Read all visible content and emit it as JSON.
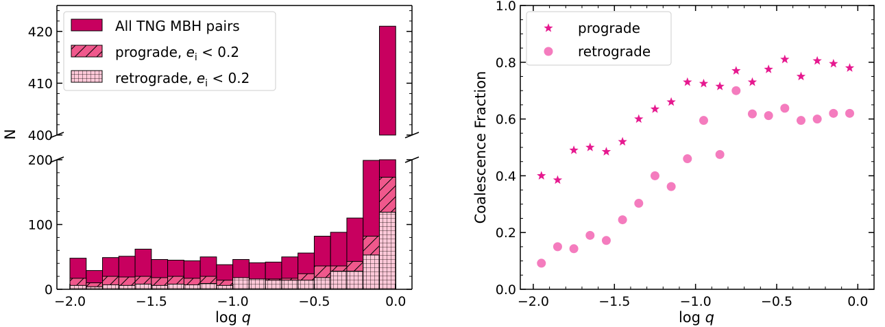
{
  "chart_data": [
    {
      "type": "bar",
      "panel": "left",
      "xlabel": "log q",
      "ylabel": "N",
      "xlim": [
        -2.08,
        0.1
      ],
      "ylim_lower": [
        0,
        200
      ],
      "ylim_upper": [
        400,
        425
      ],
      "broken_y_axis": true,
      "xticks": [
        "−2.0",
        "−1.5",
        "−1.0",
        "−0.5",
        "0.0"
      ],
      "yticks_lower": [
        "0",
        "100",
        "200"
      ],
      "yticks_upper": [
        "400",
        "410",
        "420"
      ],
      "bin_edges": [
        -2.0,
        -1.9,
        -1.8,
        -1.7,
        -1.6,
        -1.5,
        -1.4,
        -1.3,
        -1.2,
        -1.1,
        -1.0,
        -0.9,
        -0.8,
        -0.7,
        -0.6,
        -0.5,
        -0.4,
        -0.3,
        -0.2,
        -0.1,
        0.0
      ],
      "series": [
        {
          "name": "All TNG MBH pairs",
          "color": "#c8005f",
          "values": [
            48,
            29,
            49,
            51,
            62,
            46,
            45,
            44,
            50,
            38,
            46,
            41,
            42,
            50,
            56,
            82,
            88,
            110,
            199,
            421
          ]
        },
        {
          "name": "prograde, e_i < 0.2",
          "color": "#f0588c",
          "hatch": "diagonal",
          "values": [
            17,
            10,
            20,
            19,
            20,
            18,
            20,
            17,
            20,
            14,
            17,
            14,
            16,
            17,
            24,
            36,
            36,
            43,
            82,
            173
          ]
        },
        {
          "name": "retrograde, e_i < 0.2",
          "color": "#ffc8d8",
          "hatch": "grid",
          "values": [
            6,
            4,
            7,
            6,
            8,
            6,
            8,
            7,
            9,
            6,
            18,
            16,
            14,
            14,
            14,
            18,
            28,
            28,
            53,
            119
          ]
        }
      ],
      "legend": {
        "position": "top-left",
        "entries": [
          {
            "label": "All TNG MBH pairs",
            "math": false
          },
          {
            "label": "prograde, ",
            "math": true
          },
          {
            "label": "retrograde, ",
            "math": true
          }
        ],
        "math_symbol": "e",
        "math_subscript": "i",
        "math_tail": " < 0.2"
      }
    },
    {
      "type": "scatter",
      "panel": "right",
      "xlabel": "log q",
      "ylabel": "Coalescence Fraction",
      "xlim": [
        -2.08,
        0.1
      ],
      "ylim": [
        0.0,
        1.0
      ],
      "xticks": [
        "−2.0",
        "−1.5",
        "−1.0",
        "−0.5",
        "0.0"
      ],
      "yticks": [
        "0.0",
        "0.2",
        "0.4",
        "0.6",
        "0.8",
        "1.0"
      ],
      "x": [
        -1.95,
        -1.85,
        -1.75,
        -1.65,
        -1.55,
        -1.45,
        -1.35,
        -1.25,
        -1.15,
        -1.05,
        -0.95,
        -0.85,
        -0.75,
        -0.65,
        -0.55,
        -0.45,
        -0.35,
        -0.25,
        -0.15,
        -0.05
      ],
      "series": [
        {
          "name": "prograde",
          "marker": "star",
          "color": "#e6198f",
          "values": [
            0.4,
            0.385,
            0.49,
            0.5,
            0.485,
            0.52,
            0.6,
            0.635,
            0.66,
            0.73,
            0.725,
            0.715,
            0.77,
            0.73,
            0.775,
            0.81,
            0.75,
            0.805,
            0.795,
            0.78
          ]
        },
        {
          "name": "retrograde",
          "marker": "circle",
          "color": "#f47cbe",
          "values": [
            0.092,
            0.15,
            0.143,
            0.19,
            0.172,
            0.245,
            0.303,
            0.4,
            0.362,
            0.46,
            0.595,
            0.475,
            0.7,
            0.618,
            0.612,
            0.638,
            0.595,
            0.6,
            0.62,
            0.62
          ]
        }
      ],
      "legend": {
        "position": "top-left",
        "entries": [
          "prograde",
          "retrograde"
        ]
      }
    }
  ]
}
